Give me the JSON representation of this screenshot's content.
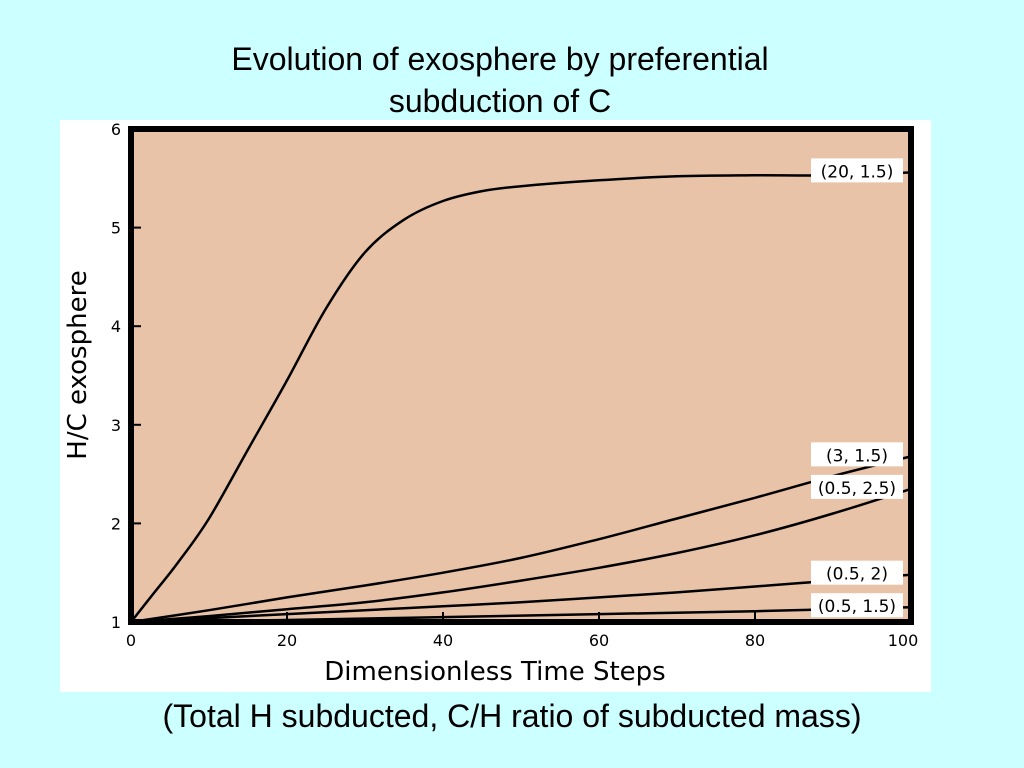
{
  "slide": {
    "title_line1": "Evolution of exosphere by preferential",
    "title_line2": "subduction of C",
    "caption": "(Total H subducted, C/H ratio of subducted mass)"
  },
  "colors": {
    "background": "#ccffff",
    "plot_area": "#e8c3a8",
    "line": "#000000"
  },
  "chart_data": {
    "type": "line",
    "xlabel": "Dimensionless Time Steps",
    "ylabel": "H/C exosphere",
    "xlim": [
      0,
      100
    ],
    "ylim": [
      1,
      6
    ],
    "x_ticks": [
      0,
      20,
      40,
      60,
      80,
      100
    ],
    "y_ticks": [
      1,
      2,
      3,
      4,
      5,
      6
    ],
    "grid": false,
    "series": [
      {
        "name": "(20, 1.5)",
        "x": [
          0,
          3,
          6,
          10,
          15,
          20,
          25,
          30,
          35,
          40,
          45,
          50,
          60,
          70,
          80,
          90,
          100
        ],
        "y": [
          1.0,
          1.3,
          1.6,
          2.05,
          2.75,
          3.45,
          4.18,
          4.75,
          5.08,
          5.27,
          5.37,
          5.42,
          5.48,
          5.52,
          5.53,
          5.53,
          5.56
        ]
      },
      {
        "name": "(3, 1.5)",
        "x": [
          0,
          10,
          20,
          30,
          40,
          50,
          60,
          70,
          80,
          90,
          100
        ],
        "y": [
          1.0,
          1.12,
          1.25,
          1.37,
          1.5,
          1.65,
          1.84,
          2.05,
          2.26,
          2.48,
          2.68
        ]
      },
      {
        "name": "(0.5, 2.5)",
        "x": [
          0,
          10,
          20,
          30,
          40,
          50,
          60,
          70,
          80,
          90,
          100
        ],
        "y": [
          1.0,
          1.06,
          1.13,
          1.2,
          1.3,
          1.42,
          1.55,
          1.7,
          1.88,
          2.1,
          2.35
        ]
      },
      {
        "name": "(0.5, 2)",
        "x": [
          0,
          10,
          20,
          30,
          40,
          50,
          60,
          70,
          80,
          90,
          100
        ],
        "y": [
          1.0,
          1.04,
          1.08,
          1.12,
          1.16,
          1.2,
          1.25,
          1.3,
          1.36,
          1.42,
          1.48
        ]
      },
      {
        "name": "(0.5, 1.5)",
        "x": [
          0,
          20,
          40,
          60,
          80,
          100
        ],
        "y": [
          1.0,
          1.02,
          1.05,
          1.08,
          1.11,
          1.15
        ]
      }
    ]
  }
}
